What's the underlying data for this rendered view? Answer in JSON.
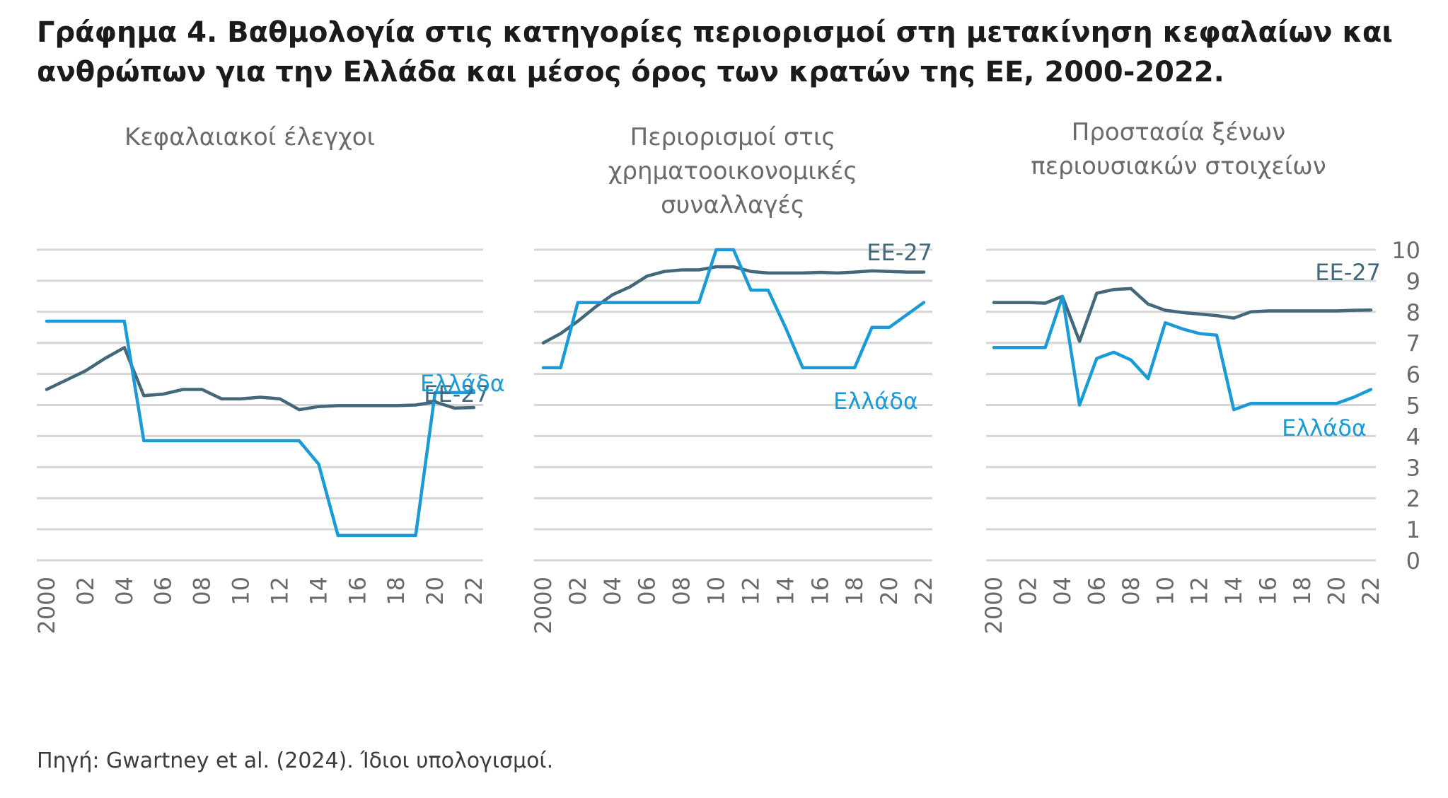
{
  "title": "Γράφημα 4. Βαθμολογία στις κατηγορίες περιορισμοί στη μετακίνηση κεφαλαίων και ανθρώπων για την Ελλάδα και μέσος όρος των κρατών της ΕΕ, 2000-2022.",
  "source": "Πηγή: Gwartney et al. (2024). Ίδιοι υπολογισμοί.",
  "colors": {
    "greece": "#1a9ad6",
    "eu27": "#43687a",
    "grid": "#d6d6d6",
    "text": "#6a6a6a"
  },
  "chart_data": [
    {
      "type": "line",
      "title": "Κεφαλαιακοί έλεγχοι",
      "x": [
        2000,
        2001,
        2002,
        2003,
        2004,
        2005,
        2006,
        2007,
        2008,
        2009,
        2010,
        2011,
        2012,
        2013,
        2014,
        2015,
        2016,
        2017,
        2018,
        2019,
        2020,
        2021,
        2022
      ],
      "x_tick_labels": [
        "2000",
        "02",
        "04",
        "06",
        "08",
        "10",
        "12",
        "14",
        "16",
        "18",
        "20",
        "22"
      ],
      "ylim": [
        0,
        10
      ],
      "grid": true,
      "series": [
        {
          "name": "Ελλάδα",
          "values": [
            7.7,
            7.7,
            7.7,
            7.7,
            7.7,
            3.85,
            3.85,
            3.85,
            3.85,
            3.85,
            3.85,
            3.85,
            3.85,
            3.85,
            3.1,
            0.8,
            0.8,
            0.8,
            0.8,
            0.8,
            5.4,
            5.4,
            5.4
          ]
        },
        {
          "name": "ΕΕ-27",
          "values": [
            5.5,
            5.8,
            6.1,
            6.5,
            6.85,
            5.3,
            5.35,
            5.5,
            5.5,
            5.2,
            5.2,
            5.25,
            5.2,
            4.85,
            4.95,
            4.98,
            4.98,
            4.98,
            4.98,
            5.0,
            5.1,
            4.9,
            4.92
          ]
        }
      ]
    },
    {
      "type": "line",
      "title": "Περιορισμοί στις χρηματοοικονομικές συναλλαγές",
      "x": [
        2000,
        2001,
        2002,
        2003,
        2004,
        2005,
        2006,
        2007,
        2008,
        2009,
        2010,
        2011,
        2012,
        2013,
        2014,
        2015,
        2016,
        2017,
        2018,
        2019,
        2020,
        2021,
        2022
      ],
      "x_tick_labels": [
        "2000",
        "02",
        "04",
        "06",
        "08",
        "10",
        "12",
        "14",
        "16",
        "18",
        "20",
        "22"
      ],
      "ylim": [
        0,
        10
      ],
      "grid": true,
      "series": [
        {
          "name": "Ελλάδα",
          "values": [
            6.2,
            6.2,
            8.3,
            8.3,
            8.3,
            8.3,
            8.3,
            8.3,
            8.3,
            8.3,
            10,
            10,
            8.7,
            8.7,
            7.5,
            6.2,
            6.2,
            6.2,
            6.2,
            7.5,
            7.5,
            7.9,
            8.3
          ]
        },
        {
          "name": "ΕΕ-27",
          "values": [
            7.0,
            7.3,
            7.7,
            8.15,
            8.55,
            8.8,
            9.15,
            9.3,
            9.35,
            9.35,
            9.45,
            9.45,
            9.3,
            9.25,
            9.25,
            9.25,
            9.27,
            9.25,
            9.28,
            9.32,
            9.3,
            9.28,
            9.28
          ]
        }
      ]
    },
    {
      "type": "line",
      "title": "Προστασία ξένων περιουσιακών στοιχείων",
      "x": [
        2000,
        2001,
        2002,
        2003,
        2004,
        2005,
        2006,
        2007,
        2008,
        2009,
        2010,
        2011,
        2012,
        2013,
        2014,
        2015,
        2016,
        2017,
        2018,
        2019,
        2020,
        2021,
        2022
      ],
      "x_tick_labels": [
        "2000",
        "02",
        "04",
        "06",
        "08",
        "10",
        "12",
        "14",
        "16",
        "18",
        "20",
        "22"
      ],
      "y_tick_labels": [
        "10",
        "9",
        "8",
        "7",
        "6",
        "5",
        "4",
        "3",
        "2",
        "1",
        "0"
      ],
      "ylim": [
        0,
        10
      ],
      "grid": true,
      "series": [
        {
          "name": "Ελλάδα",
          "values": [
            6.85,
            6.85,
            6.85,
            6.85,
            8.5,
            5.0,
            6.5,
            6.7,
            6.45,
            5.85,
            7.65,
            7.45,
            7.3,
            7.25,
            4.85,
            5.05,
            5.05,
            5.05,
            5.05,
            5.05,
            5.05,
            5.25,
            5.5
          ]
        },
        {
          "name": "ΕΕ-27",
          "values": [
            8.3,
            8.3,
            8.3,
            8.28,
            8.5,
            7.05,
            8.6,
            8.72,
            8.75,
            8.25,
            8.05,
            7.98,
            7.93,
            7.88,
            7.8,
            8.0,
            8.03,
            8.03,
            8.03,
            8.03,
            8.03,
            8.05,
            8.06
          ]
        }
      ]
    }
  ]
}
